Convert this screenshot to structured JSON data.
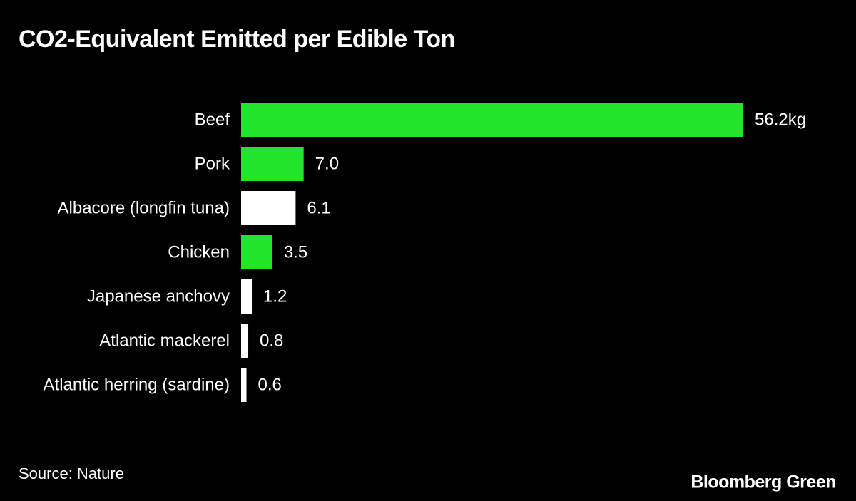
{
  "chart_data": {
    "type": "bar",
    "orientation": "horizontal",
    "title": "CO2-Equivalent Emitted per Edible Ton",
    "categories": [
      "Beef",
      "Pork",
      "Albacore (longfin tuna)",
      "Chicken",
      "Japanese anchovy",
      "Atlantic mackerel",
      "Atlantic herring (sardine)"
    ],
    "values": [
      56.2,
      7.0,
      6.1,
      3.5,
      1.2,
      0.8,
      0.6
    ],
    "value_labels": [
      "56.2kg",
      "7.0",
      "6.1",
      "3.5",
      "1.2",
      "0.8",
      "0.6"
    ],
    "colors": [
      "#22e52b",
      "#22e52b",
      "#ffffff",
      "#22e52b",
      "#ffffff",
      "#ffffff",
      "#ffffff"
    ],
    "source": "Source: Nature",
    "brand": "Bloomberg Green"
  }
}
